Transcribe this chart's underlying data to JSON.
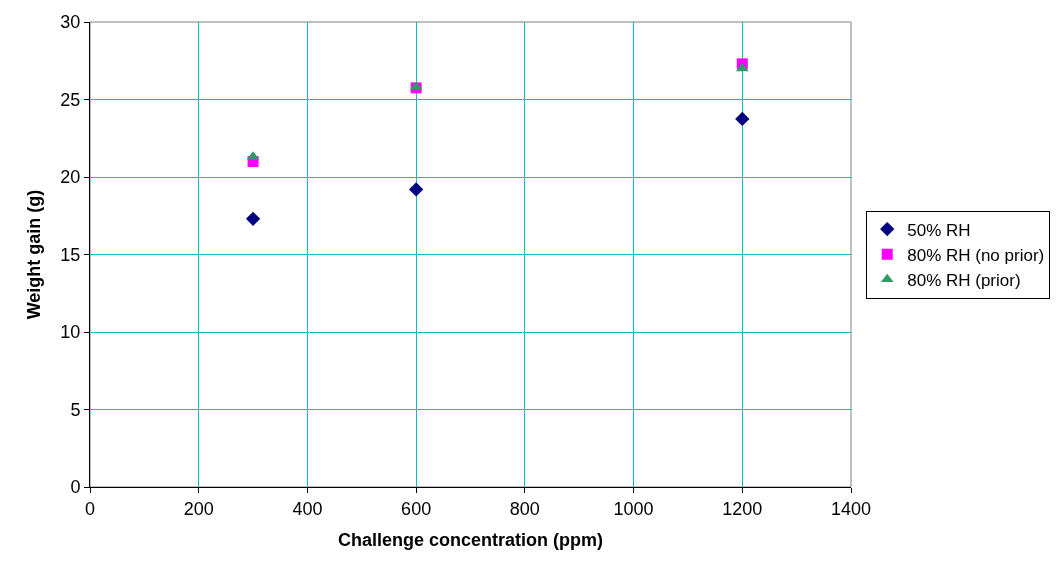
{
  "chart_data": {
    "type": "scatter",
    "xlabel": "Challenge concentration (ppm)",
    "ylabel": "Weight gain (g)",
    "xlim": [
      0,
      1400
    ],
    "xticks": [
      0,
      200,
      400,
      600,
      800,
      1000,
      1200,
      1400
    ],
    "ylim": [
      0,
      30
    ],
    "yticks": [
      0,
      5,
      10,
      15,
      20,
      25,
      30
    ],
    "grid": true,
    "legend": "right",
    "x": [
      300,
      600,
      1200
    ],
    "series": [
      {
        "name": "50% RH",
        "color": "#000080",
        "values": [
          17.3,
          19.2,
          23.75
        ],
        "marker": "diamond"
      },
      {
        "name": "80% RH (no prior)",
        "color": "#ff00ff",
        "values": [
          21.0,
          25.75,
          27.3
        ],
        "marker": "square"
      },
      {
        "name": "80% RH (prior)",
        "color": "#339966",
        "values": [
          21.3,
          25.8,
          27.0
        ],
        "marker": "triangle"
      }
    ]
  }
}
